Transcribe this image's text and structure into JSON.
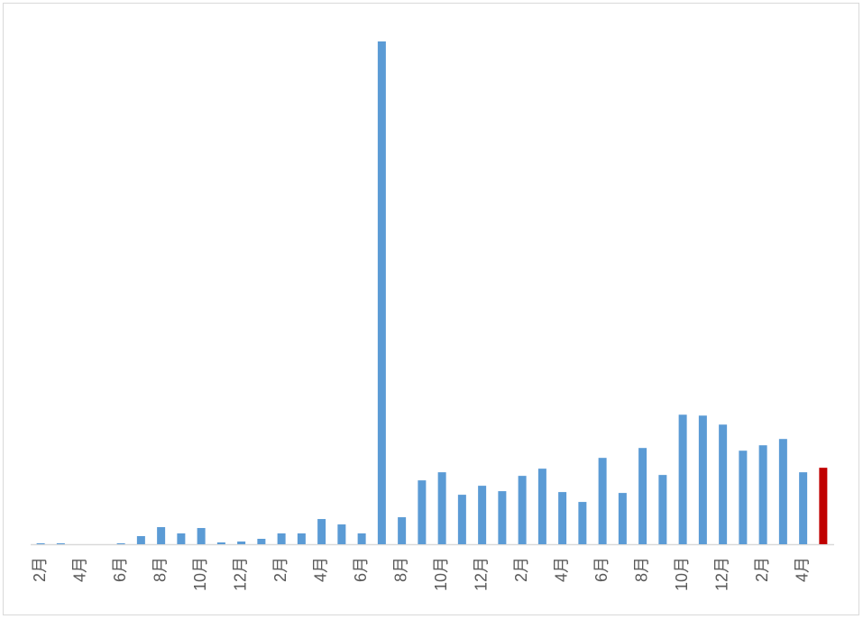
{
  "chart_data": {
    "type": "bar",
    "categories": [
      "2月",
      null,
      "4月",
      null,
      "6月",
      null,
      "8月",
      null,
      "10月",
      null,
      "12月",
      null,
      "2月",
      null,
      "4月",
      null,
      "6月",
      null,
      "8月",
      null,
      "10月",
      null,
      "12月",
      null,
      "2月",
      null,
      "4月",
      null,
      "6月",
      null,
      "8月",
      null,
      "10月",
      null,
      "12月",
      null,
      "2月",
      null,
      "4月",
      null
    ],
    "values": [
      1,
      1,
      0,
      0,
      1,
      9,
      19,
      12,
      18,
      2,
      3,
      6,
      12,
      12,
      28,
      22,
      12,
      559,
      30,
      71,
      80,
      55,
      65,
      59,
      76,
      84,
      58,
      47,
      96,
      57,
      107,
      77,
      144,
      143,
      133,
      104,
      110,
      117,
      80,
      85
    ],
    "colors": [
      "#5b9bd5",
      "#5b9bd5",
      "#5b9bd5",
      "#5b9bd5",
      "#5b9bd5",
      "#5b9bd5",
      "#5b9bd5",
      "#5b9bd5",
      "#5b9bd5",
      "#5b9bd5",
      "#5b9bd5",
      "#5b9bd5",
      "#5b9bd5",
      "#5b9bd5",
      "#5b9bd5",
      "#5b9bd5",
      "#5b9bd5",
      "#5b9bd5",
      "#5b9bd5",
      "#5b9bd5",
      "#5b9bd5",
      "#5b9bd5",
      "#5b9bd5",
      "#5b9bd5",
      "#5b9bd5",
      "#5b9bd5",
      "#5b9bd5",
      "#5b9bd5",
      "#5b9bd5",
      "#5b9bd5",
      "#5b9bd5",
      "#5b9bd5",
      "#5b9bd5",
      "#5b9bd5",
      "#5b9bd5",
      "#5b9bd5",
      "#5b9bd5",
      "#5b9bd5",
      "#5b9bd5",
      "#c00000"
    ],
    "ylim": [
      0,
      560
    ]
  }
}
